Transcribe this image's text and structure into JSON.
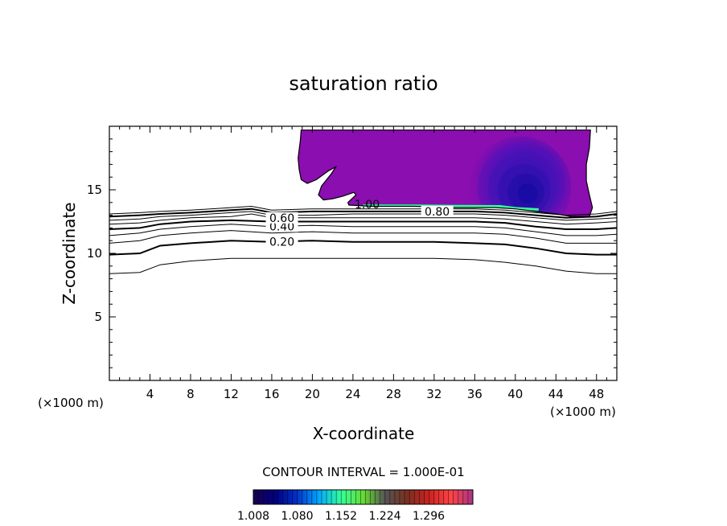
{
  "chart_data": {
    "type": "contour",
    "title": "saturation ratio",
    "xlabel": "X-coordinate",
    "ylabel": "Z-coordinate",
    "x_unit_left": "(×1000 m)",
    "x_unit_right": "(×1000 m)",
    "xlim": [
      0,
      50
    ],
    "ylim": [
      0,
      20
    ],
    "x_ticks": [
      {
        "value": 4,
        "label": "4"
      },
      {
        "value": 8,
        "label": "8"
      },
      {
        "value": 12,
        "label": "12"
      },
      {
        "value": 16,
        "label": "16"
      },
      {
        "value": 20,
        "label": "20"
      },
      {
        "value": 24,
        "label": "24"
      },
      {
        "value": 28,
        "label": "28"
      },
      {
        "value": 32,
        "label": "32"
      },
      {
        "value": 36,
        "label": "36"
      },
      {
        "value": 40,
        "label": "40"
      },
      {
        "value": 44,
        "label": "44"
      },
      {
        "value": 48,
        "label": "48"
      }
    ],
    "y_ticks": [
      {
        "value": 5,
        "label": "5"
      },
      {
        "value": 10,
        "label": "10"
      },
      {
        "value": 15,
        "label": "15"
      }
    ],
    "contour_lines": [
      {
        "level": 0.1,
        "bold": false,
        "points": [
          [
            0,
            8.4
          ],
          [
            3,
            8.5
          ],
          [
            5,
            9.1
          ],
          [
            8,
            9.4
          ],
          [
            12,
            9.6
          ],
          [
            16,
            9.6
          ],
          [
            20,
            9.6
          ],
          [
            24,
            9.6
          ],
          [
            28,
            9.6
          ],
          [
            32,
            9.6
          ],
          [
            36,
            9.5
          ],
          [
            39,
            9.3
          ],
          [
            42,
            9.0
          ],
          [
            45,
            8.6
          ],
          [
            48,
            8.4
          ],
          [
            50,
            8.4
          ]
        ]
      },
      {
        "level": 0.2,
        "bold": true,
        "label": "0.20",
        "label_x": 17,
        "points": [
          [
            0,
            9.9
          ],
          [
            3,
            10.0
          ],
          [
            5,
            10.6
          ],
          [
            8,
            10.8
          ],
          [
            12,
            11.0
          ],
          [
            16,
            10.9
          ],
          [
            20,
            11.0
          ],
          [
            24,
            10.9
          ],
          [
            28,
            10.9
          ],
          [
            32,
            10.9
          ],
          [
            36,
            10.8
          ],
          [
            39,
            10.7
          ],
          [
            42,
            10.4
          ],
          [
            45,
            10.0
          ],
          [
            48,
            9.9
          ],
          [
            50,
            9.9
          ]
        ]
      },
      {
        "level": 0.3,
        "bold": false,
        "points": [
          [
            0,
            10.8
          ],
          [
            3,
            11.0
          ],
          [
            5,
            11.4
          ],
          [
            8,
            11.6
          ],
          [
            12,
            11.8
          ],
          [
            16,
            11.6
          ],
          [
            20,
            11.7
          ],
          [
            24,
            11.6
          ],
          [
            28,
            11.6
          ],
          [
            32,
            11.6
          ],
          [
            36,
            11.6
          ],
          [
            39,
            11.5
          ],
          [
            42,
            11.2
          ],
          [
            45,
            10.8
          ],
          [
            48,
            10.8
          ],
          [
            50,
            10.8
          ]
        ]
      },
      {
        "level": 0.4,
        "bold": false,
        "label": "0.40",
        "label_x": 17,
        "points": [
          [
            0,
            11.4
          ],
          [
            3,
            11.6
          ],
          [
            5,
            11.9
          ],
          [
            8,
            12.1
          ],
          [
            12,
            12.3
          ],
          [
            16,
            12.1
          ],
          [
            20,
            12.2
          ],
          [
            24,
            12.1
          ],
          [
            28,
            12.1
          ],
          [
            32,
            12.1
          ],
          [
            36,
            12.1
          ],
          [
            39,
            12.0
          ],
          [
            42,
            11.7
          ],
          [
            45,
            11.4
          ],
          [
            48,
            11.4
          ],
          [
            50,
            11.5
          ]
        ]
      },
      {
        "level": 0.5,
        "bold": true,
        "points": [
          [
            0,
            11.9
          ],
          [
            3,
            12.0
          ],
          [
            5,
            12.3
          ],
          [
            8,
            12.5
          ],
          [
            12,
            12.6
          ],
          [
            16,
            12.5
          ],
          [
            20,
            12.5
          ],
          [
            24,
            12.5
          ],
          [
            28,
            12.5
          ],
          [
            32,
            12.5
          ],
          [
            36,
            12.5
          ],
          [
            39,
            12.4
          ],
          [
            42,
            12.1
          ],
          [
            45,
            11.9
          ],
          [
            48,
            11.9
          ],
          [
            50,
            12.0
          ]
        ]
      },
      {
        "level": 0.6,
        "bold": false,
        "label": "0.60",
        "label_x": 17,
        "points": [
          [
            0,
            12.3
          ],
          [
            3,
            12.4
          ],
          [
            5,
            12.6
          ],
          [
            8,
            12.8
          ],
          [
            12,
            12.9
          ],
          [
            14,
            13.1
          ],
          [
            16,
            12.8
          ],
          [
            20,
            12.8
          ],
          [
            24,
            12.8
          ],
          [
            28,
            12.8
          ],
          [
            32,
            12.8
          ],
          [
            36,
            12.8
          ],
          [
            39,
            12.7
          ],
          [
            42,
            12.5
          ],
          [
            45,
            12.3
          ],
          [
            48,
            12.4
          ],
          [
            50,
            12.5
          ]
        ]
      },
      {
        "level": 0.7,
        "bold": false,
        "points": [
          [
            0,
            12.6
          ],
          [
            3,
            12.7
          ],
          [
            5,
            12.9
          ],
          [
            8,
            13.0
          ],
          [
            12,
            13.2
          ],
          [
            14,
            13.3
          ],
          [
            16,
            13.0
          ],
          [
            20,
            13.0
          ],
          [
            24,
            13.1
          ],
          [
            28,
            13.1
          ],
          [
            32,
            13.1
          ],
          [
            36,
            13.1
          ],
          [
            39,
            13.0
          ],
          [
            42,
            12.8
          ],
          [
            45,
            12.6
          ],
          [
            48,
            12.7
          ],
          [
            50,
            12.8
          ]
        ]
      },
      {
        "level": 0.8,
        "bold": true,
        "label": "0.80",
        "label_x": 32.3,
        "points": [
          [
            0,
            12.9
          ],
          [
            3,
            13.0
          ],
          [
            5,
            13.1
          ],
          [
            8,
            13.2
          ],
          [
            12,
            13.4
          ],
          [
            14,
            13.5
          ],
          [
            16,
            13.2
          ],
          [
            20,
            13.3
          ],
          [
            24,
            13.3
          ],
          [
            28,
            13.3
          ],
          [
            32,
            13.3
          ],
          [
            36,
            13.3
          ],
          [
            39,
            13.2
          ],
          [
            42,
            13.0
          ],
          [
            45,
            12.8
          ],
          [
            48,
            12.9
          ],
          [
            50,
            13.1
          ]
        ]
      },
      {
        "level": 0.9,
        "bold": false,
        "points": [
          [
            0,
            13.1
          ],
          [
            3,
            13.2
          ],
          [
            5,
            13.3
          ],
          [
            8,
            13.4
          ],
          [
            12,
            13.6
          ],
          [
            14,
            13.7
          ],
          [
            16,
            13.4
          ],
          [
            20,
            13.5
          ],
          [
            24,
            13.5
          ],
          [
            28,
            13.5
          ],
          [
            32,
            13.5
          ],
          [
            36,
            13.5
          ],
          [
            39,
            13.4
          ],
          [
            42,
            13.2
          ],
          [
            45,
            13.0
          ],
          [
            48,
            13.1
          ],
          [
            50,
            13.3
          ]
        ]
      }
    ],
    "supersat_label": {
      "text": "1.00",
      "x": 25.4,
      "y": 13.8
    },
    "supersat_region": [
      [
        18.9,
        19.7
      ],
      [
        18.8,
        18.8
      ],
      [
        18.6,
        17.5
      ],
      [
        18.7,
        16.6
      ],
      [
        18.9,
        15.8
      ],
      [
        19.5,
        15.5
      ],
      [
        20.4,
        15.8
      ],
      [
        21.6,
        16.5
      ],
      [
        22.3,
        16.8
      ],
      [
        21.9,
        16.3
      ],
      [
        20.9,
        15.3
      ],
      [
        20.6,
        14.6
      ],
      [
        21.1,
        14.2
      ],
      [
        22.0,
        14.3
      ],
      [
        23.0,
        14.5
      ],
      [
        24.1,
        14.8
      ],
      [
        24.3,
        14.6
      ],
      [
        23.9,
        14.3
      ],
      [
        23.5,
        14.0
      ],
      [
        23.6,
        13.8
      ],
      [
        26.0,
        13.7
      ],
      [
        30.0,
        13.7
      ],
      [
        34.0,
        13.6
      ],
      [
        38.0,
        13.6
      ],
      [
        40.0,
        13.5
      ],
      [
        42.0,
        13.3
      ],
      [
        44.0,
        13.1
      ],
      [
        45.5,
        12.9
      ],
      [
        47.3,
        12.9
      ],
      [
        47.6,
        13.6
      ],
      [
        47.3,
        14.6
      ],
      [
        47.0,
        15.7
      ],
      [
        47.0,
        17.0
      ],
      [
        47.3,
        18.3
      ],
      [
        47.4,
        19.7
      ]
    ],
    "supersat_core": {
      "cx": 40.5,
      "cy": 15.2,
      "rx": 5.0,
      "ry": 4.0
    },
    "interval_text": "CONTOUR INTERVAL = 1.000E-01",
    "colorbar": {
      "min": 1.008,
      "max": 1.332,
      "labels": [
        "1.008",
        "1.080",
        "1.152",
        "1.224",
        "1.296"
      ],
      "colors": [
        "#1a0050",
        "#000080",
        "#0033cc",
        "#00aaff",
        "#33ff99",
        "#66dd33",
        "#555555",
        "#7a3020",
        "#cc2222",
        "#ff4444",
        "#aa3388"
      ]
    },
    "colors": {
      "supersat_fill": "#8a0eb0",
      "core_fill": "#0a0a9a",
      "streak": "#33ff99"
    }
  }
}
